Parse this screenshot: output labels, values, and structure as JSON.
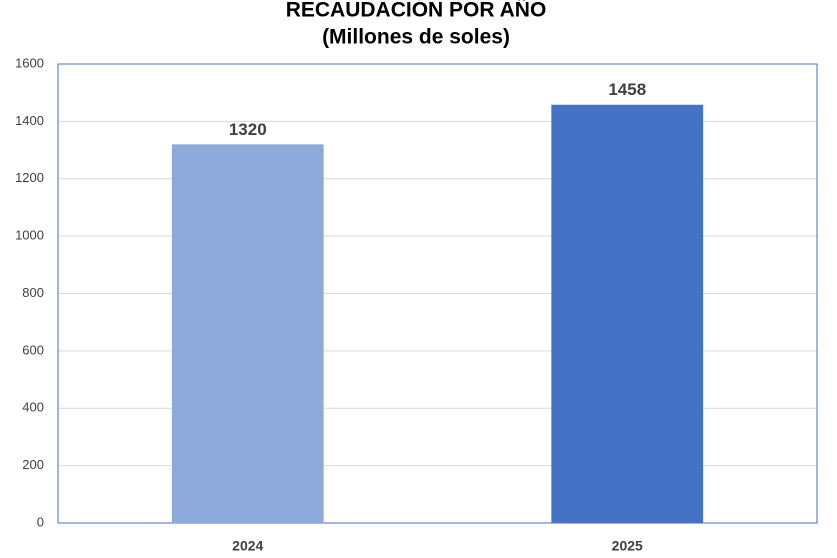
{
  "chart_data": {
    "type": "bar",
    "title": "RECAUDACIÓN POR AÑO",
    "subtitle": "(Millones de soles)",
    "categories": [
      "2024",
      "2025"
    ],
    "values": [
      1320,
      1458
    ],
    "colors": [
      "#8eaadb",
      "#4472c4"
    ],
    "ylim": [
      0,
      1600
    ],
    "yticks": [
      0,
      200,
      400,
      600,
      800,
      1000,
      1200,
      1400,
      1600
    ],
    "grid": true
  }
}
